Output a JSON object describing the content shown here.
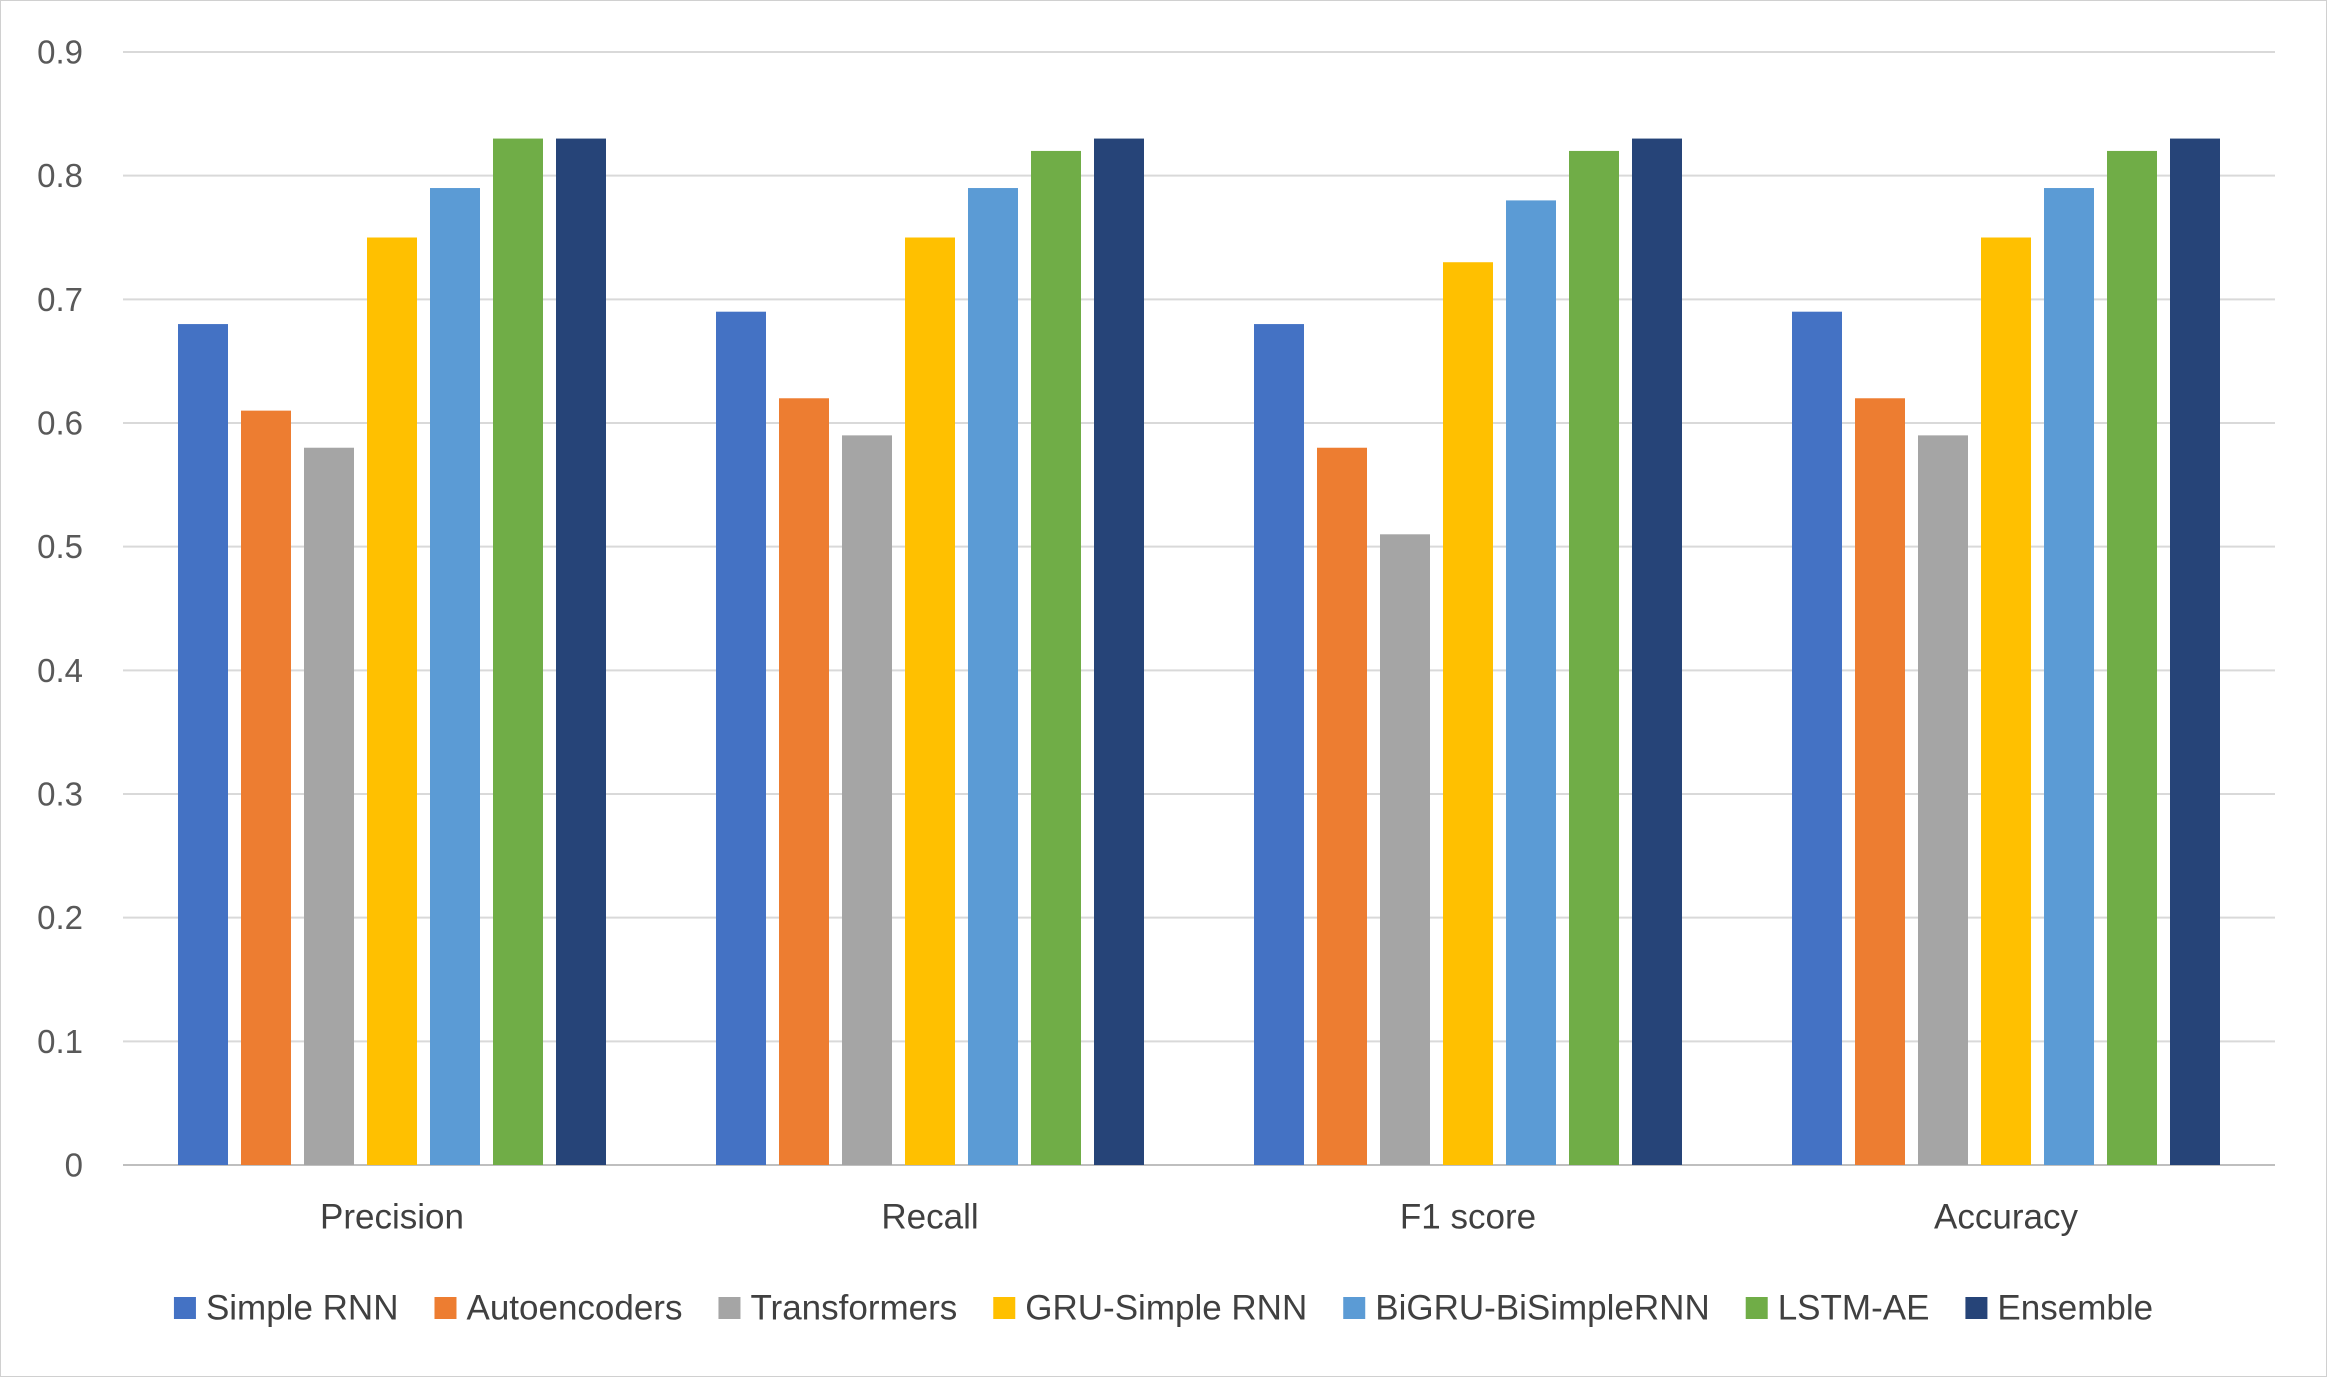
{
  "chart_data": {
    "type": "bar",
    "categories": [
      "Precision",
      "Recall",
      "F1 score",
      "Accuracy"
    ],
    "series": [
      {
        "name": "Simple RNN",
        "color": "#4472C4",
        "values": [
          0.68,
          0.69,
          0.68,
          0.69
        ]
      },
      {
        "name": "Autoencoders",
        "color": "#ED7D31",
        "values": [
          0.61,
          0.62,
          0.58,
          0.62
        ]
      },
      {
        "name": "Transformers",
        "color": "#A5A5A5",
        "values": [
          0.58,
          0.59,
          0.51,
          0.59
        ]
      },
      {
        "name": "GRU-Simple RNN",
        "color": "#FFC000",
        "values": [
          0.75,
          0.75,
          0.73,
          0.75
        ]
      },
      {
        "name": "BiGRU-BiSimpleRNN",
        "color": "#5B9BD5",
        "values": [
          0.79,
          0.79,
          0.78,
          0.79
        ]
      },
      {
        "name": "LSTM-AE",
        "color": "#70AD47",
        "values": [
          0.83,
          0.82,
          0.82,
          0.82
        ]
      },
      {
        "name": "Ensemble",
        "color": "#264478",
        "values": [
          0.83,
          0.83,
          0.83,
          0.83
        ]
      }
    ],
    "title": "",
    "xlabel": "",
    "ylabel": "",
    "ylim": [
      0,
      0.9
    ],
    "yticks": [
      "0",
      "0.1",
      "0.2",
      "0.3",
      "0.4",
      "0.5",
      "0.6",
      "0.7",
      "0.8",
      "0.9"
    ],
    "grid": true,
    "legend_position": "bottom"
  }
}
